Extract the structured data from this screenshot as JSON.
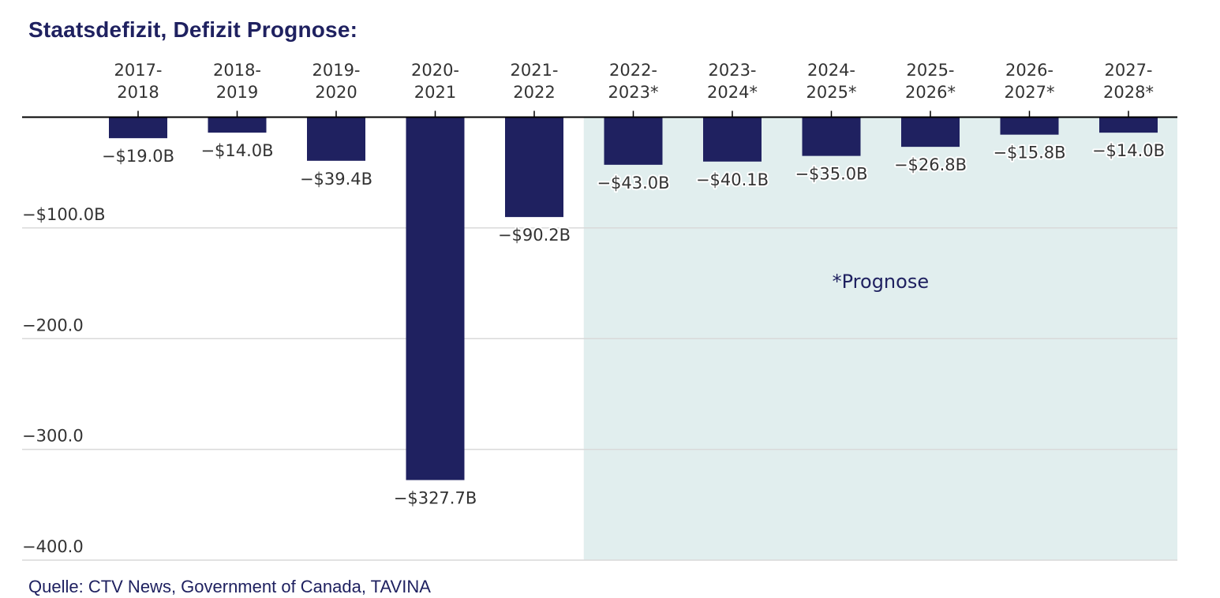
{
  "title": "Staatsdefizit, Defizit Prognose:",
  "source": "Quelle: CTV News, Government of Canada, TAVINA",
  "colors": {
    "bar": "#1f2160",
    "forecast_band": "#e1eeee",
    "gridline": "#d9d9d9",
    "axis": "#000000",
    "title": "#1f2160"
  },
  "chart_data": {
    "type": "bar",
    "title": "Staatsdefizit, Defizit Prognose:",
    "categories": [
      [
        "2017-",
        "2018"
      ],
      [
        "2018-",
        "2019"
      ],
      [
        "2019-",
        "2020"
      ],
      [
        "2020-",
        "2021"
      ],
      [
        "2021-",
        "2022"
      ],
      [
        "2022-",
        "2023*"
      ],
      [
        "2023-",
        "2024*"
      ],
      [
        "2024-",
        "2025*"
      ],
      [
        "2025-",
        "2026*"
      ],
      [
        "2026-",
        "2027*"
      ],
      [
        "2027-",
        "2028*"
      ]
    ],
    "values": [
      -19.0,
      -14.0,
      -39.4,
      -327.7,
      -90.2,
      -43.0,
      -40.1,
      -35.0,
      -26.8,
      -15.8,
      -14.0
    ],
    "data_labels": [
      "−$19.0B",
      "−$14.0B",
      "−$39.4B",
      "−$327.7B",
      "−$90.2B",
      "−$43.0B",
      "−$40.1B",
      "−$35.0B",
      "−$26.8B",
      "−$15.8B",
      "−$14.0B"
    ],
    "y_ticks": [
      {
        "value": -100,
        "label": "−$100.0B"
      },
      {
        "value": -200,
        "label": "−200.0"
      },
      {
        "value": -300,
        "label": "−300.0"
      },
      {
        "value": -400,
        "label": "−400.0"
      }
    ],
    "ylim": [
      -400,
      0
    ],
    "x_axis_position": "top",
    "grid": true,
    "forecast_start_index": 5,
    "annotation": "*Prognose"
  }
}
